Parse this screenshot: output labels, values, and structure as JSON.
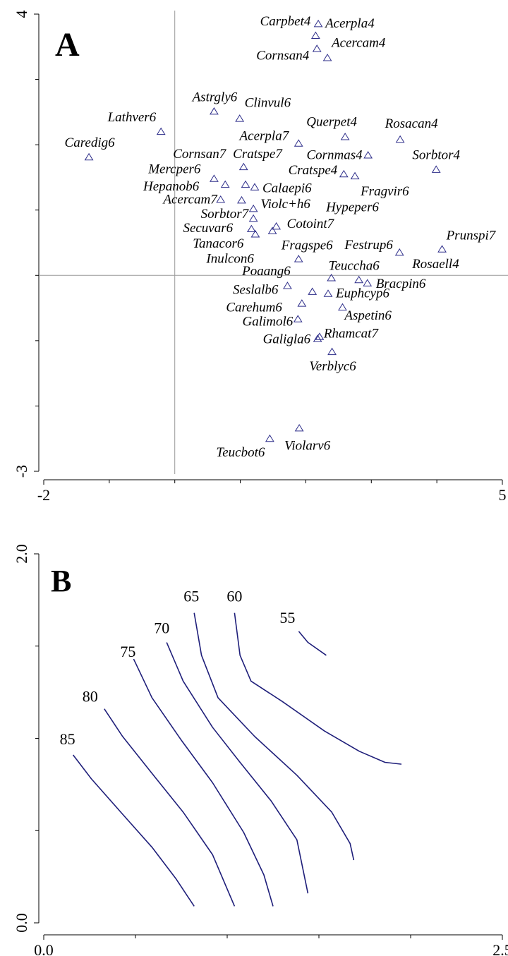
{
  "chart_data": [
    {
      "type": "scatter",
      "title": "A",
      "point_labels": [
        "Carpbet4",
        "Acerpla4",
        "Acercam4",
        "Cornsan4",
        "Astrgly6",
        "Clinvul6",
        "Lathver6",
        "Caredig6",
        "Querpet4",
        "Rosacan4",
        "Acerpla7",
        "Cornmas4",
        "Sorbtor4",
        "Cornsan7",
        "Cratspe7",
        "Cratspe4",
        "Fragvir6",
        "Hypeper6",
        "Mercper6",
        "Hepanob6",
        "Calaepi6",
        "Acercam7",
        "Violc+h6",
        "Sorbtor7",
        "Secuvar6",
        "Tanacor6",
        "Inulcon6",
        "Cotoint7",
        "Fragspe6",
        "Festrup6",
        "Prunspi7",
        "Rosaell4",
        "Poaang6",
        "Teuccha6",
        "Seslalb6",
        "Bracpin6",
        "Euphcyp6",
        "Carehum6",
        "Aspetin6",
        "Galimol6",
        "Galigla6",
        "Rhamcat7",
        "Verblyc6",
        "Violarv6",
        "Teucbot6"
      ],
      "x": [
        2.15,
        2.19,
        2.33,
        2.17,
        0.6,
        0.99,
        -0.21,
        -1.31,
        2.6,
        3.44,
        1.89,
        2.95,
        3.99,
        1.05,
        1.08,
        2.58,
        2.75,
        1.49,
        0.6,
        0.77,
        1.22,
        0.7,
        1.02,
        1.2,
        1.2,
        1.17,
        1.23,
        1.55,
        1.89,
        2.81,
        4.08,
        3.43,
        2.1,
        2.39,
        1.72,
        2.94,
        2.34,
        1.94,
        2.56,
        1.88,
        2.18,
        2.21,
        2.4,
        1.9,
        1.45
      ],
      "values": [
        3.67,
        3.85,
        3.33,
        3.47,
        2.51,
        2.4,
        2.2,
        1.81,
        2.12,
        2.08,
        2.02,
        1.84,
        1.62,
        1.66,
        1.39,
        1.55,
        1.52,
        0.68,
        1.48,
        1.39,
        1.35,
        1.16,
        1.15,
        1.02,
        0.87,
        0.71,
        0.63,
        0.75,
        0.25,
        -0.07,
        0.4,
        0.35,
        -0.25,
        -0.04,
        -0.16,
        -0.12,
        -0.28,
        -0.43,
        -0.49,
        -0.67,
        -0.97,
        -0.94,
        -1.17,
        -2.34,
        -2.5
      ],
      "color": "#2e2e8a",
      "marker": "triangle",
      "xlim": [
        -2,
        5
      ],
      "ylim": [
        -3,
        4
      ],
      "xticks": [
        -2,
        5
      ],
      "yticks": [
        -3,
        4
      ],
      "xminor_ticks": [
        -1,
        0,
        1,
        2,
        3,
        4
      ],
      "yminor_ticks": [
        -2,
        -1,
        0,
        1,
        2,
        3
      ],
      "hline": 0,
      "vline": 0
    },
    {
      "type": "contour",
      "title": "B",
      "color": "#1f1f7a",
      "series": [
        {
          "level": 85,
          "x": [
            0.16,
            0.26,
            0.42,
            0.59,
            0.72,
            0.82
          ],
          "values": [
            0.91,
            0.78,
            0.6,
            0.41,
            0.24,
            0.09
          ]
        },
        {
          "level": 80,
          "x": [
            0.33,
            0.43,
            0.59,
            0.76,
            0.92,
            1.04
          ],
          "values": [
            1.16,
            1.01,
            0.81,
            0.6,
            0.37,
            0.09
          ]
        },
        {
          "level": 75,
          "x": [
            0.49,
            0.59,
            0.75,
            0.92,
            1.09,
            1.2,
            1.25
          ],
          "values": [
            1.43,
            1.22,
            0.99,
            0.76,
            0.49,
            0.26,
            0.09
          ]
        },
        {
          "level": 70,
          "x": [
            0.67,
            0.76,
            0.92,
            1.07,
            1.24,
            1.38,
            1.44
          ],
          "values": [
            1.52,
            1.31,
            1.06,
            0.87,
            0.66,
            0.45,
            0.16
          ]
        },
        {
          "level": 65,
          "x": [
            0.82,
            0.86,
            0.95,
            1.15,
            1.38,
            1.57,
            1.67,
            1.69
          ],
          "values": [
            1.68,
            1.45,
            1.22,
            1.01,
            0.8,
            0.6,
            0.43,
            0.34
          ]
        },
        {
          "level": 60,
          "x": [
            1.04,
            1.07,
            1.13,
            1.3,
            1.53,
            1.72,
            1.86,
            1.95
          ],
          "values": [
            1.68,
            1.45,
            1.31,
            1.2,
            1.04,
            0.93,
            0.87,
            0.86
          ]
        },
        {
          "level": 55,
          "x": [
            1.39,
            1.44,
            1.54
          ],
          "values": [
            1.58,
            1.52,
            1.45
          ]
        }
      ],
      "xlim": [
        0,
        2.5
      ],
      "ylim": [
        0,
        2
      ],
      "xticks": [
        {
          "value": 0,
          "label": "0.0"
        },
        {
          "value": 2.5,
          "label": "2.5"
        }
      ],
      "yticks": [
        {
          "value": 0,
          "label": "0.0"
        },
        {
          "value": 2,
          "label": "2.0"
        }
      ],
      "xminor_ticks": [
        0.5,
        1,
        1.5,
        2
      ],
      "yminor_ticks": [
        0.5,
        1,
        1.5
      ]
    }
  ]
}
